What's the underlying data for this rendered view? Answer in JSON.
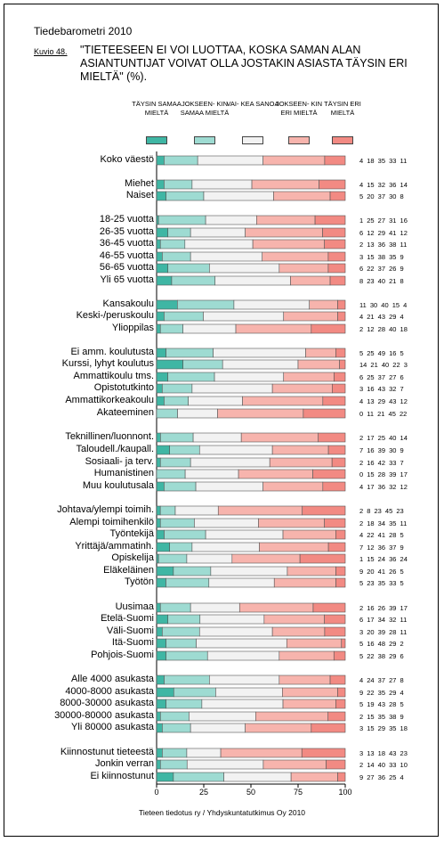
{
  "header": {
    "doc_title": "Tiedebarometri 2010",
    "figure_label": "Kuvio 48.",
    "figure_title": "\"TIETEESEEN EI VOI LUOTTAA, KOSKA SAMAN ALAN ASIANTUNTIJAT VOIVAT OLLA JOSTAKIN ASIASTA TÄYSIN ERI MIELTÄ\" (%)."
  },
  "legend": [
    {
      "label": "TÄYSIN SAMAA MIELTÄ",
      "color": "#3fb6a4"
    },
    {
      "label": "JOKSEEN- KIN SAMAA MIELTÄ",
      "color": "#9edbd2"
    },
    {
      "label": "VAI- KEA SANOA",
      "color": "#f2f2f2"
    },
    {
      "label": "JOKSEEN- KIN ERI MIELTÄ",
      "color": "#f7b4ad"
    },
    {
      "label": "TÄYSIN ERI MIELTÄ",
      "color": "#f28a83"
    }
  ],
  "source": "Tieteen tiedotus ry / Yhdyskuntatutkimus Oy 2010",
  "chart_data": {
    "type": "bar",
    "orientation": "horizontal",
    "stacked": true,
    "xlim": [
      0,
      100
    ],
    "xticks": [
      0,
      25,
      50,
      75,
      100
    ],
    "series_names": [
      "TÄYSIN SAMAA MIELTÄ",
      "JOKSEENKIN SAMAA MIELTÄ",
      "VAIKEA SANOA",
      "JOKSEENKIN ERI MIELTÄ",
      "TÄYSIN ERI MIELTÄ"
    ],
    "rows": [
      {
        "label": "Koko väestö",
        "values": [
          4,
          18,
          35,
          33,
          11
        ]
      },
      {
        "label": "Miehet",
        "values": [
          4,
          15,
          32,
          36,
          14
        ]
      },
      {
        "label": "Naiset",
        "values": [
          5,
          20,
          37,
          30,
          8
        ]
      },
      {
        "label": "18-25 vuotta",
        "values": [
          1,
          25,
          27,
          31,
          16
        ]
      },
      {
        "label": "26-35 vuotta",
        "values": [
          6,
          12,
          29,
          41,
          12
        ]
      },
      {
        "label": "36-45 vuotta",
        "values": [
          2,
          13,
          36,
          38,
          11
        ]
      },
      {
        "label": "46-55 vuotta",
        "values": [
          3,
          15,
          38,
          35,
          9
        ]
      },
      {
        "label": "56-65 vuotta",
        "values": [
          6,
          22,
          37,
          26,
          9
        ]
      },
      {
        "label": "Yli 65 vuotta",
        "values": [
          8,
          23,
          40,
          21,
          8
        ]
      },
      {
        "label": "Kansakoulu",
        "values": [
          11,
          30,
          40,
          15,
          4
        ]
      },
      {
        "label": "Keski-/peruskoulu",
        "values": [
          4,
          21,
          43,
          29,
          4
        ]
      },
      {
        "label": "Ylioppilas",
        "values": [
          2,
          12,
          28,
          40,
          18
        ]
      },
      {
        "label": "Ei amm. koulutusta",
        "values": [
          5,
          25,
          49,
          16,
          5
        ]
      },
      {
        "label": "Kurssi, lyhyt koulutus",
        "values": [
          14,
          21,
          40,
          22,
          3
        ]
      },
      {
        "label": "Ammattikoulu tms.",
        "values": [
          6,
          25,
          37,
          27,
          6
        ]
      },
      {
        "label": "Opistotutkinto",
        "values": [
          3,
          16,
          43,
          32,
          7
        ]
      },
      {
        "label": "Ammattikorkeakoulu",
        "values": [
          4,
          13,
          29,
          43,
          12
        ]
      },
      {
        "label": "Akateeminen",
        "values": [
          0,
          11,
          21,
          45,
          22
        ]
      },
      {
        "label": "Teknillinen/luonnont.",
        "values": [
          2,
          17,
          25,
          40,
          14
        ]
      },
      {
        "label": "Taloudell./kaupall.",
        "values": [
          7,
          16,
          39,
          30,
          9
        ]
      },
      {
        "label": "Sosiaali- ja terv.",
        "values": [
          2,
          16,
          42,
          33,
          7
        ]
      },
      {
        "label": "Humanistinen",
        "values": [
          0,
          15,
          28,
          39,
          17
        ]
      },
      {
        "label": "Muu koulutusala",
        "values": [
          4,
          17,
          36,
          32,
          12
        ]
      },
      {
        "label": "Johtava/ylempi toimih.",
        "values": [
          2,
          8,
          23,
          45,
          23
        ]
      },
      {
        "label": "Alempi toimihenkilö",
        "values": [
          2,
          18,
          34,
          35,
          11
        ]
      },
      {
        "label": "Työntekijä",
        "values": [
          4,
          22,
          41,
          28,
          5
        ]
      },
      {
        "label": "Yrittäjä/ammatinh.",
        "values": [
          7,
          12,
          36,
          37,
          9
        ]
      },
      {
        "label": "Opiskelija",
        "values": [
          1,
          15,
          24,
          36,
          24
        ]
      },
      {
        "label": "Eläkeläinen",
        "values": [
          9,
          20,
          41,
          26,
          5
        ]
      },
      {
        "label": "Työtön",
        "values": [
          5,
          23,
          35,
          33,
          5
        ]
      },
      {
        "label": "Uusimaa",
        "values": [
          2,
          16,
          26,
          39,
          17
        ]
      },
      {
        "label": "Etelä-Suomi",
        "values": [
          6,
          17,
          34,
          32,
          11
        ]
      },
      {
        "label": "Väli-Suomi",
        "values": [
          3,
          20,
          39,
          28,
          11
        ]
      },
      {
        "label": "Itä-Suomi",
        "values": [
          5,
          16,
          48,
          29,
          2
        ]
      },
      {
        "label": "Pohjois-Suomi",
        "values": [
          5,
          22,
          38,
          29,
          6
        ]
      },
      {
        "label": "Alle 4000 asukasta",
        "values": [
          4,
          24,
          37,
          27,
          8
        ]
      },
      {
        "label": "4000-8000 asukasta",
        "values": [
          9,
          22,
          35,
          29,
          4
        ]
      },
      {
        "label": "8000-30000 asukasta",
        "values": [
          5,
          19,
          43,
          28,
          5
        ]
      },
      {
        "label": "30000-80000 asukasta",
        "values": [
          2,
          15,
          35,
          38,
          9
        ]
      },
      {
        "label": "Yli 80000 asukasta",
        "values": [
          3,
          15,
          29,
          35,
          18
        ]
      },
      {
        "label": "Kiinnostunut tieteestä",
        "values": [
          3,
          13,
          18,
          43,
          23
        ]
      },
      {
        "label": "Jonkin verran",
        "values": [
          2,
          14,
          40,
          33,
          10
        ]
      },
      {
        "label": "Ei kiinnostunut",
        "values": [
          9,
          27,
          36,
          25,
          4
        ]
      }
    ]
  }
}
